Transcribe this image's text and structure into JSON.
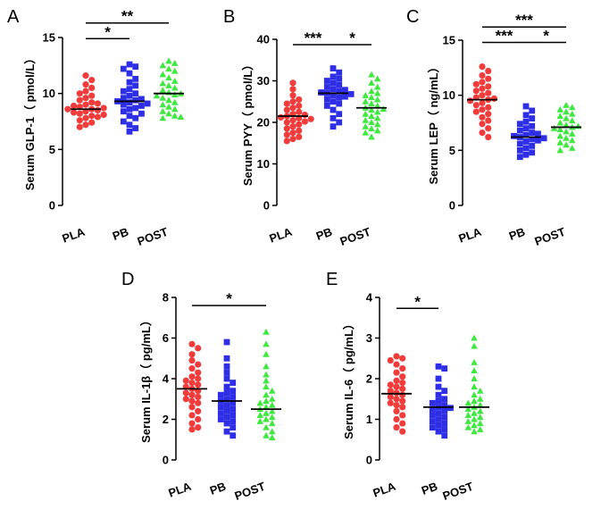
{
  "colors": {
    "PLA": "#f23b3b",
    "PB": "#2e2ee6",
    "POST": "#3fe83f"
  },
  "chart_data": [
    {
      "panel": "A",
      "type": "scatter",
      "ylabel": "Serum GLP-1（ pmol/L）",
      "ylim": [
        0,
        15
      ],
      "yticks": [
        0,
        5,
        10,
        15
      ],
      "categories": [
        "PLA",
        "PB",
        "POST"
      ],
      "series": [
        {
          "category": "PLA",
          "median": 8.6,
          "values": [
            11.6,
            11.2,
            10.8,
            10.5,
            10.2,
            10.0,
            9.8,
            9.6,
            9.4,
            9.2,
            9.1,
            9.0,
            8.9,
            8.8,
            8.7,
            8.6,
            8.6,
            8.5,
            8.4,
            8.3,
            8.2,
            8.1,
            8.0,
            7.9,
            7.8,
            7.6,
            7.4,
            7.2,
            7.0
          ]
        },
        {
          "category": "PB",
          "median": 9.3,
          "values": [
            12.6,
            12.4,
            12.2,
            11.8,
            11.3,
            11.0,
            10.7,
            10.4,
            10.2,
            10.0,
            9.8,
            9.6,
            9.5,
            9.4,
            9.3,
            9.2,
            9.1,
            9.0,
            8.9,
            8.7,
            8.6,
            8.4,
            8.2,
            8.0,
            7.8,
            7.5,
            7.2,
            6.9,
            6.6
          ]
        },
        {
          "category": "POST",
          "median": 10.0,
          "values": [
            12.9,
            12.7,
            12.5,
            12.2,
            12.0,
            11.7,
            11.4,
            11.1,
            10.9,
            10.7,
            10.5,
            10.3,
            10.1,
            10.0,
            9.9,
            9.8,
            9.6,
            9.4,
            9.2,
            9.0,
            8.8,
            8.6,
            8.4,
            8.2,
            8.0,
            7.9,
            7.8
          ]
        }
      ],
      "significance": [
        {
          "from": "PLA",
          "to": "PB",
          "label": "*",
          "y": 14.9
        },
        {
          "from": "PLA",
          "to": "POST",
          "label": "**",
          "y": 16.3
        }
      ]
    },
    {
      "panel": "B",
      "type": "scatter",
      "ylabel": "Serum PYY（ pmol/L）",
      "ylim": [
        0,
        40
      ],
      "yticks": [
        0,
        10,
        20,
        30,
        40
      ],
      "categories": [
        "PLA",
        "PB",
        "POST"
      ],
      "series": [
        {
          "category": "PLA",
          "median": 21.5,
          "values": [
            29.5,
            28.0,
            26.5,
            25.5,
            25.0,
            24.5,
            24.0,
            23.5,
            23.0,
            22.5,
            22.0,
            21.8,
            21.5,
            21.2,
            21.0,
            20.8,
            20.5,
            20.2,
            20.0,
            19.5,
            19.0,
            18.5,
            18.0,
            17.5,
            17.0,
            16.5,
            16.0,
            15.5
          ]
        },
        {
          "category": "PB",
          "median": 27.0,
          "values": [
            33.0,
            32.0,
            31.0,
            30.5,
            30.0,
            29.5,
            29.0,
            28.5,
            28.0,
            27.8,
            27.5,
            27.2,
            27.0,
            26.8,
            26.5,
            26.2,
            26.0,
            25.5,
            25.0,
            24.5,
            24.0,
            23.0,
            22.0,
            21.0,
            20.0,
            19.0
          ]
        },
        {
          "category": "POST",
          "median": 23.5,
          "values": [
            31.5,
            30.5,
            29.5,
            28.5,
            27.5,
            27.0,
            26.5,
            26.0,
            25.5,
            25.0,
            24.5,
            24.0,
            23.5,
            23.2,
            23.0,
            22.5,
            22.0,
            21.5,
            21.0,
            20.5,
            20.0,
            19.5,
            19.0,
            18.5,
            18.0,
            17.5,
            16.5
          ]
        }
      ],
      "significance": [
        {
          "from": "PLA",
          "to": "PB",
          "label": "***",
          "y": 38.7
        },
        {
          "from": "PB",
          "to": "POST",
          "label": "*",
          "y": 38.7
        }
      ]
    },
    {
      "panel": "C",
      "type": "scatter",
      "ylabel": "Serum LEP（ ng/mL）",
      "ylim": [
        0,
        15
      ],
      "yticks": [
        0,
        5,
        10,
        15
      ],
      "categories": [
        "PLA",
        "PB",
        "POST"
      ],
      "series": [
        {
          "category": "PLA",
          "median": 9.6,
          "values": [
            12.6,
            12.2,
            11.8,
            11.5,
            11.2,
            11.0,
            10.8,
            10.6,
            10.4,
            10.2,
            10.0,
            9.8,
            9.7,
            9.6,
            9.5,
            9.3,
            9.1,
            8.9,
            8.7,
            8.5,
            8.3,
            8.0,
            7.7,
            7.4,
            7.0,
            6.6,
            6.2
          ]
        },
        {
          "category": "PB",
          "median": 6.2,
          "values": [
            9.0,
            8.6,
            8.2,
            7.9,
            7.6,
            7.4,
            7.2,
            7.0,
            6.8,
            6.6,
            6.5,
            6.4,
            6.3,
            6.2,
            6.1,
            6.0,
            5.9,
            5.8,
            5.6,
            5.4,
            5.2,
            5.0,
            4.8,
            4.6,
            4.4
          ]
        },
        {
          "category": "POST",
          "median": 7.1,
          "values": [
            9.1,
            8.9,
            8.7,
            8.5,
            8.3,
            8.1,
            7.9,
            7.7,
            7.5,
            7.3,
            7.2,
            7.1,
            7.0,
            6.9,
            6.7,
            6.5,
            6.3,
            6.1,
            5.9,
            5.7,
            5.5,
            5.2,
            5.0
          ]
        }
      ],
      "significance": [
        {
          "from": "PLA",
          "to": "PB",
          "label": "***",
          "y": 14.8
        },
        {
          "from": "PB",
          "to": "POST",
          "label": "*",
          "y": 14.8
        },
        {
          "from": "PLA",
          "to": "POST",
          "label": "***",
          "y": 16.2
        }
      ]
    },
    {
      "panel": "D",
      "type": "scatter",
      "ylabel": "Serum IL-1β（ pg/mL）",
      "ylim": [
        0,
        8
      ],
      "yticks": [
        0,
        2,
        4,
        6,
        8
      ],
      "categories": [
        "PLA",
        "PB",
        "POST"
      ],
      "series": [
        {
          "category": "PLA",
          "median": 3.5,
          "values": [
            5.7,
            5.5,
            5.2,
            4.9,
            4.7,
            4.5,
            4.3,
            4.1,
            4.0,
            3.9,
            3.8,
            3.7,
            3.6,
            3.5,
            3.4,
            3.3,
            3.2,
            3.1,
            3.0,
            2.9,
            2.8,
            2.6,
            2.4,
            2.2,
            2.0,
            1.8,
            1.6,
            1.5
          ]
        },
        {
          "category": "PB",
          "median": 2.9,
          "values": [
            5.8,
            5.0,
            4.6,
            4.3,
            4.0,
            3.8,
            3.6,
            3.4,
            3.3,
            3.2,
            3.1,
            3.0,
            2.9,
            2.8,
            2.7,
            2.6,
            2.5,
            2.4,
            2.3,
            2.2,
            2.1,
            2.0,
            1.9,
            1.8,
            1.6,
            1.4,
            1.2
          ]
        },
        {
          "category": "POST",
          "median": 2.5,
          "values": [
            6.3,
            5.7,
            5.2,
            4.6,
            4.2,
            3.9,
            3.6,
            3.4,
            3.2,
            3.0,
            2.9,
            2.8,
            2.7,
            2.6,
            2.5,
            2.4,
            2.3,
            2.2,
            2.1,
            2.0,
            1.9,
            1.8,
            1.6,
            1.4,
            1.2,
            1.1
          ]
        }
      ],
      "significance": [
        {
          "from": "PLA",
          "to": "POST",
          "label": "*",
          "y": 7.6
        }
      ]
    },
    {
      "panel": "E",
      "type": "scatter",
      "ylabel": "Serum IL-6（ pg/mL）",
      "ylim": [
        0,
        4
      ],
      "yticks": [
        0,
        1,
        2,
        3,
        4
      ],
      "categories": [
        "PLA",
        "PB",
        "POST"
      ],
      "series": [
        {
          "category": "PLA",
          "median": 1.63,
          "values": [
            2.55,
            2.5,
            2.45,
            2.35,
            2.25,
            2.15,
            2.05,
            1.95,
            1.9,
            1.85,
            1.8,
            1.75,
            1.7,
            1.65,
            1.6,
            1.55,
            1.5,
            1.45,
            1.4,
            1.35,
            1.3,
            1.2,
            1.1,
            1.0,
            0.9,
            0.8,
            0.7
          ]
        },
        {
          "category": "PB",
          "median": 1.3,
          "values": [
            2.3,
            2.25,
            2.0,
            1.8,
            1.7,
            1.6,
            1.5,
            1.45,
            1.4,
            1.35,
            1.3,
            1.28,
            1.25,
            1.2,
            1.15,
            1.1,
            1.05,
            1.0,
            0.95,
            0.9,
            0.85,
            0.8,
            0.75,
            0.7,
            0.6
          ]
        },
        {
          "category": "POST",
          "median": 1.3,
          "values": [
            3.0,
            2.8,
            2.4,
            2.2,
            2.0,
            1.8,
            1.7,
            1.6,
            1.5,
            1.45,
            1.4,
            1.35,
            1.3,
            1.25,
            1.2,
            1.15,
            1.1,
            1.05,
            1.0,
            0.95,
            0.9,
            0.85,
            0.8,
            0.75,
            0.7
          ]
        }
      ],
      "significance": [
        {
          "from": "PLA",
          "to": "PB",
          "label": "*",
          "y": 3.73
        }
      ]
    }
  ]
}
